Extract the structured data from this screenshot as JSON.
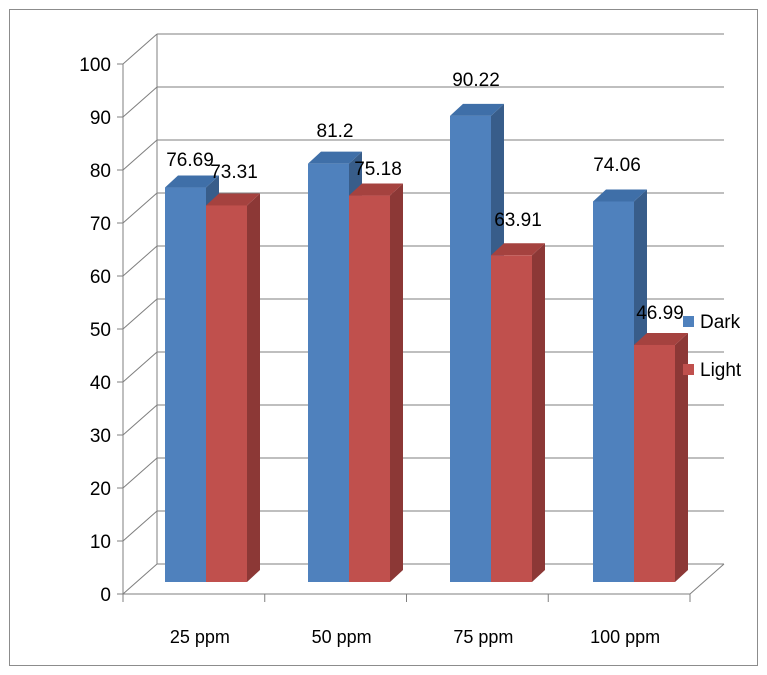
{
  "chart_data": {
    "type": "bar",
    "style": "3d-clustered-column",
    "categories": [
      "25 ppm",
      "50 ppm",
      "75 ppm",
      "100 ppm"
    ],
    "series": [
      {
        "name": "Dark",
        "values": [
          76.69,
          81.2,
          90.22,
          74.06
        ],
        "labels": [
          "76.69",
          "81.2",
          "90.22",
          "74.06"
        ],
        "color": "#4f81bd",
        "side_color": "#385d8a",
        "top_color": "#3f6fa8"
      },
      {
        "name": "Light",
        "values": [
          73.31,
          75.18,
          63.91,
          46.99
        ],
        "labels": [
          "73.31",
          "75.18",
          "63.91",
          "46.99"
        ],
        "color": "#c0504d",
        "side_color": "#8c3836",
        "top_color": "#a5423f"
      }
    ],
    "ylim": [
      0,
      100
    ],
    "yticks": [
      "0",
      "10",
      "20",
      "30",
      "40",
      "50",
      "60",
      "70",
      "80",
      "90",
      "100"
    ],
    "grid": true,
    "legend_position": "right",
    "title": "",
    "xlabel": "",
    "ylabel": ""
  }
}
